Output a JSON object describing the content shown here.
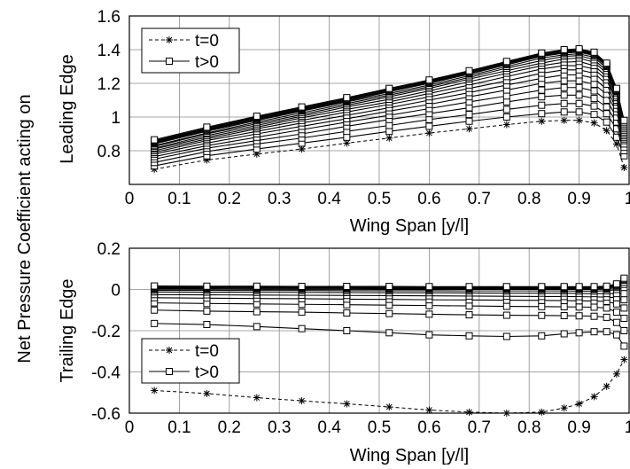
{
  "ylabel_shared": "Net Pressure Coefficient acting on",
  "chart_data": [
    {
      "type": "line",
      "ylabel": "Leading Edge",
      "xlabel": "Wing Span [y/l]",
      "xlim": [
        0,
        1
      ],
      "ylim": [
        0.6,
        1.6
      ],
      "xticks": [
        "0",
        "0.1",
        "0.2",
        "0.3",
        "0.4",
        "0.5",
        "0.6",
        "0.7",
        "0.8",
        "0.9",
        "1"
      ],
      "yticks": [
        "0.8",
        "1",
        "1.2",
        "1.4",
        "1.6"
      ],
      "grid": true,
      "legend_position": "top-left",
      "x": [
        0.05,
        0.155,
        0.255,
        0.345,
        0.435,
        0.52,
        0.6,
        0.68,
        0.755,
        0.825,
        0.87,
        0.9,
        0.93,
        0.955,
        0.975,
        0.99
      ],
      "series": [
        {
          "name": "t=0",
          "style": "dashed-star",
          "values": [
            0.69,
            0.745,
            0.78,
            0.81,
            0.845,
            0.875,
            0.905,
            0.93,
            0.955,
            0.975,
            0.98,
            0.98,
            0.965,
            0.92,
            0.84,
            0.7
          ]
        },
        {
          "name": "t>0",
          "style": "solid-square",
          "values": [
            0.71,
            0.77,
            0.81,
            0.845,
            0.88,
            0.915,
            0.945,
            0.975,
            1.0,
            1.02,
            1.03,
            1.03,
            1.015,
            0.97,
            0.88,
            0.77
          ]
        },
        {
          "name": "",
          "style": "solid-square",
          "values": [
            0.73,
            0.795,
            0.84,
            0.875,
            0.915,
            0.95,
            0.985,
            1.015,
            1.045,
            1.07,
            1.08,
            1.08,
            1.065,
            1.02,
            0.93,
            0.8
          ]
        },
        {
          "name": "",
          "style": "solid-square",
          "values": [
            0.75,
            0.815,
            0.86,
            0.9,
            0.945,
            0.985,
            1.02,
            1.055,
            1.09,
            1.12,
            1.13,
            1.13,
            1.11,
            1.06,
            0.97,
            0.82
          ]
        },
        {
          "name": "",
          "style": "solid-square",
          "values": [
            0.765,
            0.83,
            0.88,
            0.925,
            0.97,
            1.01,
            1.05,
            1.09,
            1.125,
            1.16,
            1.175,
            1.175,
            1.155,
            1.1,
            1.0,
            0.84
          ]
        },
        {
          "name": "",
          "style": "solid-square",
          "values": [
            0.78,
            0.845,
            0.9,
            0.945,
            0.99,
            1.035,
            1.075,
            1.12,
            1.16,
            1.2,
            1.215,
            1.215,
            1.195,
            1.135,
            1.03,
            0.86
          ]
        },
        {
          "name": "",
          "style": "solid-square",
          "values": [
            0.79,
            0.86,
            0.915,
            0.965,
            1.01,
            1.055,
            1.1,
            1.145,
            1.19,
            1.23,
            1.25,
            1.25,
            1.23,
            1.165,
            1.05,
            0.87
          ]
        },
        {
          "name": "",
          "style": "solid-square",
          "values": [
            0.8,
            0.87,
            0.93,
            0.98,
            1.03,
            1.075,
            1.12,
            1.17,
            1.215,
            1.26,
            1.28,
            1.28,
            1.26,
            1.195,
            1.07,
            0.88
          ]
        },
        {
          "name": "",
          "style": "solid-square",
          "values": [
            0.81,
            0.88,
            0.94,
            0.995,
            1.045,
            1.09,
            1.14,
            1.19,
            1.24,
            1.285,
            1.305,
            1.305,
            1.285,
            1.22,
            1.09,
            0.89
          ]
        },
        {
          "name": "",
          "style": "solid-square",
          "values": [
            0.815,
            0.89,
            0.95,
            1.005,
            1.06,
            1.105,
            1.155,
            1.21,
            1.26,
            1.305,
            1.325,
            1.33,
            1.305,
            1.24,
            1.1,
            0.9
          ]
        },
        {
          "name": "",
          "style": "solid-square",
          "values": [
            0.825,
            0.9,
            0.96,
            1.015,
            1.07,
            1.12,
            1.17,
            1.225,
            1.275,
            1.32,
            1.345,
            1.35,
            1.325,
            1.26,
            1.115,
            0.91
          ]
        },
        {
          "name": "",
          "style": "solid-square",
          "values": [
            0.83,
            0.905,
            0.97,
            1.025,
            1.08,
            1.13,
            1.18,
            1.235,
            1.29,
            1.335,
            1.36,
            1.365,
            1.34,
            1.275,
            1.125,
            0.92
          ]
        },
        {
          "name": "",
          "style": "solid-square",
          "values": [
            0.84,
            0.915,
            0.98,
            1.035,
            1.09,
            1.14,
            1.19,
            1.245,
            1.3,
            1.35,
            1.37,
            1.375,
            1.355,
            1.29,
            1.14,
            0.93
          ]
        },
        {
          "name": "",
          "style": "solid-square",
          "values": [
            0.845,
            0.92,
            0.985,
            1.04,
            1.095,
            1.15,
            1.2,
            1.255,
            1.31,
            1.36,
            1.38,
            1.385,
            1.365,
            1.3,
            1.15,
            0.94
          ]
        },
        {
          "name": "",
          "style": "solid-square",
          "values": [
            0.85,
            0.925,
            0.99,
            1.045,
            1.1,
            1.155,
            1.205,
            1.26,
            1.315,
            1.365,
            1.385,
            1.39,
            1.37,
            1.305,
            1.155,
            0.95
          ]
        },
        {
          "name": "",
          "style": "solid-square",
          "values": [
            0.855,
            0.93,
            0.995,
            1.05,
            1.105,
            1.16,
            1.21,
            1.265,
            1.32,
            1.37,
            1.39,
            1.395,
            1.375,
            1.31,
            1.16,
            0.96
          ]
        },
        {
          "name": "",
          "style": "solid-square",
          "values": [
            0.86,
            0.935,
            1.0,
            1.055,
            1.11,
            1.165,
            1.215,
            1.27,
            1.325,
            1.375,
            1.395,
            1.4,
            1.38,
            1.315,
            1.165,
            0.97
          ]
        },
        {
          "name": "",
          "style": "solid-square",
          "values": [
            0.865,
            0.94,
            1.005,
            1.06,
            1.115,
            1.17,
            1.22,
            1.275,
            1.33,
            1.38,
            1.4,
            1.405,
            1.385,
            1.32,
            1.17,
            0.98
          ]
        }
      ],
      "legend": [
        {
          "label": "t=0",
          "style": "dashed-star"
        },
        {
          "label": "t>0",
          "style": "solid-square"
        }
      ]
    },
    {
      "type": "line",
      "ylabel": "Trailing Edge",
      "xlabel": "Wing Span [y/l]",
      "xlim": [
        0,
        1
      ],
      "ylim": [
        -0.6,
        0.2
      ],
      "xticks": [
        "0",
        "0.1",
        "0.2",
        "0.3",
        "0.4",
        "0.5",
        "0.6",
        "0.7",
        "0.8",
        "0.9",
        "1"
      ],
      "yticks": [
        "-0.6",
        "-0.4",
        "-0.2",
        "0",
        "0.2"
      ],
      "grid": true,
      "legend_position": "bottom-left",
      "x": [
        0.05,
        0.155,
        0.255,
        0.345,
        0.435,
        0.52,
        0.6,
        0.68,
        0.755,
        0.825,
        0.87,
        0.9,
        0.93,
        0.955,
        0.975,
        0.99
      ],
      "series": [
        {
          "name": "t=0",
          "style": "dashed-star",
          "values": [
            -0.49,
            -0.505,
            -0.525,
            -0.54,
            -0.555,
            -0.57,
            -0.585,
            -0.595,
            -0.6,
            -0.595,
            -0.575,
            -0.555,
            -0.52,
            -0.47,
            -0.41,
            -0.34
          ]
        },
        {
          "name": "t>0",
          "style": "solid-square",
          "values": [
            -0.165,
            -0.17,
            -0.18,
            -0.19,
            -0.2,
            -0.21,
            -0.22,
            -0.225,
            -0.228,
            -0.225,
            -0.215,
            -0.21,
            -0.205,
            -0.205,
            -0.22,
            -0.275
          ]
        },
        {
          "name": "",
          "style": "solid-square",
          "values": [
            -0.1,
            -0.105,
            -0.108,
            -0.11,
            -0.114,
            -0.117,
            -0.12,
            -0.123,
            -0.125,
            -0.126,
            -0.127,
            -0.128,
            -0.13,
            -0.135,
            -0.16,
            -0.2
          ]
        },
        {
          "name": "",
          "style": "solid-square",
          "values": [
            -0.065,
            -0.068,
            -0.07,
            -0.072,
            -0.074,
            -0.076,
            -0.078,
            -0.08,
            -0.082,
            -0.083,
            -0.084,
            -0.085,
            -0.086,
            -0.09,
            -0.11,
            -0.14
          ]
        },
        {
          "name": "",
          "style": "solid-square",
          "values": [
            -0.04,
            -0.042,
            -0.044,
            -0.045,
            -0.047,
            -0.048,
            -0.05,
            -0.051,
            -0.052,
            -0.053,
            -0.054,
            -0.055,
            -0.056,
            -0.058,
            -0.07,
            -0.09
          ]
        },
        {
          "name": "",
          "style": "solid-square",
          "values": [
            -0.025,
            -0.026,
            -0.027,
            -0.028,
            -0.029,
            -0.03,
            -0.031,
            -0.032,
            -0.033,
            -0.034,
            -0.034,
            -0.035,
            -0.036,
            -0.037,
            -0.04,
            -0.05
          ]
        },
        {
          "name": "",
          "style": "solid-square",
          "values": [
            -0.012,
            -0.013,
            -0.014,
            -0.014,
            -0.015,
            -0.016,
            -0.016,
            -0.017,
            -0.018,
            -0.018,
            -0.018,
            -0.019,
            -0.02,
            -0.02,
            -0.02,
            -0.02
          ]
        },
        {
          "name": "",
          "style": "solid-square",
          "values": [
            -0.004,
            -0.004,
            -0.005,
            -0.005,
            -0.006,
            -0.006,
            -0.006,
            -0.007,
            -0.007,
            -0.007,
            -0.007,
            -0.008,
            -0.008,
            -0.006,
            0.0,
            0.01
          ]
        },
        {
          "name": "",
          "style": "solid-square",
          "values": [
            0.002,
            0.002,
            0.001,
            0.001,
            0.001,
            0.0,
            0.0,
            0.0,
            0.0,
            0.0,
            0.0,
            0.0,
            0.0,
            0.002,
            0.01,
            0.025
          ]
        },
        {
          "name": "",
          "style": "solid-square",
          "values": [
            0.006,
            0.006,
            0.005,
            0.005,
            0.005,
            0.004,
            0.004,
            0.004,
            0.004,
            0.004,
            0.004,
            0.004,
            0.004,
            0.006,
            0.016,
            0.035
          ]
        },
        {
          "name": "",
          "style": "solid-square",
          "values": [
            0.01,
            0.01,
            0.009,
            0.009,
            0.009,
            0.008,
            0.008,
            0.008,
            0.008,
            0.008,
            0.008,
            0.008,
            0.008,
            0.01,
            0.02,
            0.045
          ]
        },
        {
          "name": "",
          "style": "solid-square",
          "values": [
            0.014,
            0.013,
            0.013,
            0.012,
            0.012,
            0.012,
            0.011,
            0.011,
            0.011,
            0.011,
            0.011,
            0.011,
            0.011,
            0.013,
            0.024,
            0.05
          ]
        },
        {
          "name": "",
          "style": "solid-square",
          "values": [
            0.017,
            0.016,
            0.016,
            0.015,
            0.015,
            0.015,
            0.014,
            0.014,
            0.014,
            0.014,
            0.014,
            0.014,
            0.014,
            0.016,
            0.027,
            0.055
          ]
        }
      ],
      "legend": [
        {
          "label": "t=0",
          "style": "dashed-star"
        },
        {
          "label": "t>0",
          "style": "solid-square"
        }
      ]
    }
  ]
}
